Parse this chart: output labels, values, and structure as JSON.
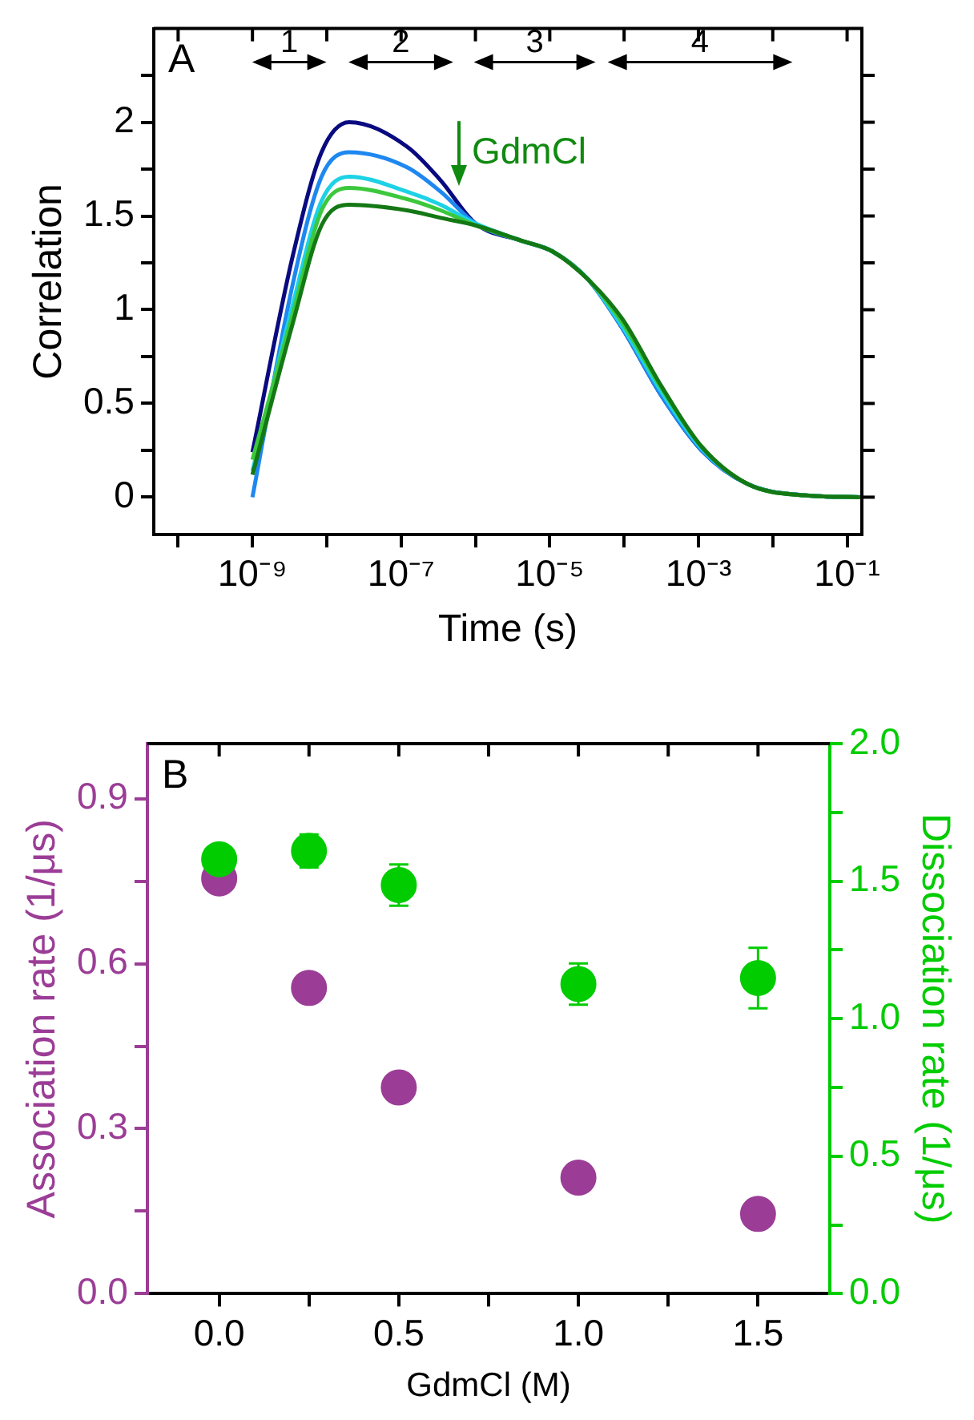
{
  "chart_data": [
    {
      "type": "line",
      "xlabel": "Time (s)",
      "ylabel": "Correlation",
      "log": "x",
      "xlim": [
        4.7e-11,
        0.158
      ],
      "ylim": [
        -0.2,
        2.5
      ],
      "xticks": [
        {
          "value": 1e-10,
          "label": null
        },
        {
          "value": 1e-09,
          "label": "10⁻⁹"
        },
        {
          "value": 1e-08,
          "label": null
        },
        {
          "value": 1e-07,
          "label": "10⁻⁷"
        },
        {
          "value": 1e-06,
          "label": null
        },
        {
          "value": 1e-05,
          "label": "10⁻⁵"
        },
        {
          "value": 0.0001,
          "label": null
        },
        {
          "value": 0.001,
          "label": "10⁻³"
        },
        {
          "value": 0.01,
          "label": null
        },
        {
          "value": 0.1,
          "label": "10⁻¹"
        }
      ],
      "yticks": [
        0,
        {
          "value": 0.25,
          "label": null
        },
        0.5,
        {
          "value": 0.75,
          "label": null
        },
        1,
        {
          "value": 1.25,
          "label": null
        },
        1.5,
        {
          "value": 1.75,
          "label": null
        },
        2,
        {
          "value": 2.25,
          "label": null
        }
      ],
      "x": [
        1e-09,
        3.5e-09,
        8.5e-09,
        2e-08,
        1.2e-07,
        3.4e-07,
        1e-06,
        4e-06,
        1.1e-05,
        3.3e-05,
        9.5e-05,
        0.00032,
        0.0011,
        0.0046,
        0.026,
        0.15
      ],
      "series": [
        {
          "color": "#0a0a80",
          "values": [
            0.24,
            1.29,
            1.84,
            2.0,
            1.87,
            1.69,
            1.46,
            1.37,
            1.31,
            1.16,
            0.9,
            0.54,
            0.25,
            0.07,
            0.01,
            0
          ]
        },
        {
          "color": "#1e88f0",
          "values": [
            0,
            1.14,
            1.71,
            1.84,
            1.76,
            1.63,
            1.46,
            1.37,
            1.31,
            1.16,
            0.9,
            0.54,
            0.25,
            0.07,
            0.01,
            0
          ]
        },
        {
          "color": "#1ed2e6",
          "values": [
            0.14,
            1.03,
            1.58,
            1.71,
            1.63,
            1.56,
            1.46,
            1.37,
            1.31,
            1.16,
            0.91,
            0.56,
            0.26,
            0.07,
            0.01,
            0
          ]
        },
        {
          "color": "#3cc83c",
          "values": [
            0.2,
            0.98,
            1.53,
            1.65,
            1.59,
            1.53,
            1.45,
            1.37,
            1.31,
            1.16,
            0.93,
            0.58,
            0.27,
            0.07,
            0.01,
            0
          ]
        },
        {
          "color": "#147814",
          "values": [
            0.12,
            0.93,
            1.45,
            1.56,
            1.53,
            1.49,
            1.45,
            1.37,
            1.31,
            1.16,
            0.95,
            0.59,
            0.27,
            0.07,
            0.01,
            0
          ]
        }
      ],
      "annotations": [
        "A",
        "1",
        "2",
        "3",
        "4",
        "GdmCl"
      ],
      "grid": false,
      "legend": false,
      "marker": "none",
      "line_style": "solid"
    },
    {
      "type": "scatter",
      "xlabel": "GdmCl (M)",
      "ylabel": "Association rate (1/μs)",
      "y2label": "Dissociation rate (1/μs)",
      "xlim": [
        -0.2,
        1.7
      ],
      "ylim": [
        0,
        1.0
      ],
      "y2lim": [
        0,
        2.0
      ],
      "xticks": [
        {
          "value": 0,
          "label": "0.0"
        },
        {
          "value": 0.25,
          "label": null
        },
        {
          "value": 0.5,
          "label": "0.5"
        },
        {
          "value": 0.75,
          "label": null
        },
        {
          "value": 1,
          "label": "1.0"
        },
        {
          "value": 1.25,
          "label": null
        },
        {
          "value": 1.5,
          "label": "1.5"
        }
      ],
      "yticks": [
        {
          "value": 0,
          "label": "0.0"
        },
        {
          "value": 0.15,
          "label": null
        },
        {
          "value": 0.3,
          "label": "0.3"
        },
        {
          "value": 0.45,
          "label": null
        },
        {
          "value": 0.6,
          "label": "0.6"
        },
        {
          "value": 0.75,
          "label": null
        },
        {
          "value": 0.9,
          "label": "0.9"
        }
      ],
      "y2ticks": [
        {
          "value": 0,
          "label": "0.0"
        },
        {
          "value": 0.25,
          "label": null
        },
        {
          "value": 0.5,
          "label": "0.5"
        },
        {
          "value": 0.75,
          "label": null
        },
        {
          "value": 1,
          "label": "1.0"
        },
        {
          "value": 1.25,
          "label": null
        },
        {
          "value": 1.5,
          "label": "1.5"
        },
        {
          "value": 1.75,
          "label": null
        },
        {
          "value": 2,
          "label": "2.0"
        }
      ],
      "x": [
        0,
        0.25,
        0.5,
        1,
        1.5
      ],
      "series": [
        {
          "color": "#9b3d96",
          "values": [
            0.755,
            0.556,
            0.375,
            0.211,
            0.145
          ]
        },
        {
          "color": "#00cc00",
          "axis": "y2",
          "values": [
            1.58,
            1.61,
            1.486,
            1.126,
            1.148
          ],
          "errors": [
            null,
            0.06,
            0.075,
            0.075,
            0.11
          ]
        }
      ],
      "annotations": [
        "B"
      ],
      "grid": false,
      "legend": false,
      "marker": "circle"
    }
  ]
}
